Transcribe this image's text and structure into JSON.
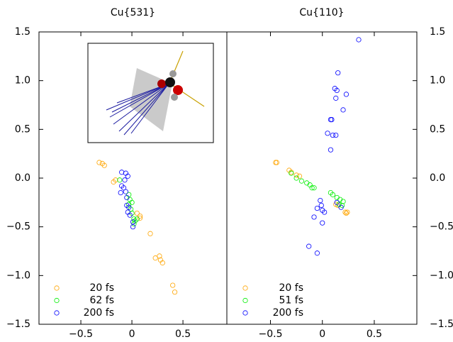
{
  "chart_data": [
    {
      "type": "scatter",
      "title": "Cu{531}",
      "legend": "lower left",
      "xlim": [
        -0.91,
        0.93
      ],
      "ylim": [
        -1.5,
        1.5
      ],
      "xticks": [
        {
          "value": -0.5,
          "label": "−0.5"
        },
        0,
        0.5
      ],
      "yticks": [
        {
          "value": -1.5,
          "label": "−1.5"
        },
        {
          "value": -1.0,
          "label": "−1.0"
        },
        {
          "value": -0.5,
          "label": "−0.5"
        },
        {
          "value": 0.0,
          "label": "0.0"
        },
        0.5,
        {
          "value": 1.0,
          "label": "1.0"
        },
        1.5
      ],
      "series": [
        {
          "name": "20 fs",
          "color": "#ffa500",
          "x": [
            -0.32,
            -0.29,
            -0.27,
            -0.18,
            -0.16,
            0.05,
            0.08,
            0.08,
            0.18,
            0.23,
            0.27,
            0.28,
            0.3,
            0.4,
            0.42
          ],
          "values": [
            0.16,
            0.15,
            0.13,
            -0.04,
            -0.02,
            -0.36,
            -0.39,
            -0.41,
            -0.57,
            -0.82,
            -0.8,
            -0.84,
            -0.87,
            -1.1,
            -1.17
          ]
        },
        {
          "name": "62 fs",
          "color": "#00ee00",
          "x": [
            -0.12,
            -0.03,
            -0.02,
            -0.03,
            0,
            -0.01,
            0,
            0.02,
            0.03,
            0.02,
            0.05
          ],
          "values": [
            -0.02,
            -0.17,
            -0.22,
            -0.27,
            -0.25,
            -0.32,
            -0.36,
            -0.42,
            -0.44,
            -0.47,
            -0.42
          ]
        },
        {
          "name": "200 fs",
          "color": "#0000ff",
          "x": [
            -0.1,
            -0.06,
            -0.04,
            -0.1,
            -0.08,
            -0.06,
            -0.11,
            -0.05,
            -0.05,
            -0.04,
            -0.02,
            0.01,
            0.01,
            -0.03,
            -0.07
          ],
          "values": [
            0.06,
            0.05,
            0.02,
            -0.08,
            -0.1,
            -0.14,
            -0.15,
            -0.2,
            -0.28,
            -0.35,
            -0.38,
            -0.45,
            -0.5,
            -0.3,
            -0.02
          ]
        }
      ]
    },
    {
      "type": "scatter",
      "title": "Cu{110}",
      "legend": "lower left",
      "xlim": [
        -0.92,
        0.91
      ],
      "ylim": [
        -1.5,
        1.5
      ],
      "xticks": [
        {
          "value": -0.5,
          "label": "−0.5"
        },
        0,
        0.5
      ],
      "yticks": [
        {
          "value": -1.5,
          "label": "−1.5"
        },
        {
          "value": -1.0,
          "label": "−1.0"
        },
        {
          "value": -0.5,
          "label": "−0.5"
        },
        {
          "value": 0.0,
          "label": "0.0"
        },
        0.5,
        {
          "value": 1.0,
          "label": "1.0"
        },
        1.5
      ],
      "series": [
        {
          "name": "20 fs",
          "color": "#ffa500",
          "x": [
            -0.45,
            -0.44,
            -0.32,
            -0.3,
            -0.25,
            -0.22,
            0.13,
            0.15,
            0.22,
            0.23,
            0.24
          ],
          "values": [
            0.16,
            0.16,
            0.08,
            0.06,
            0.03,
            0.02,
            -0.27,
            -0.28,
            -0.35,
            -0.36,
            -0.35
          ]
        },
        {
          "name": "51 fs",
          "color": "#00ee00",
          "x": [
            -0.3,
            -0.25,
            -0.2,
            -0.15,
            -0.12,
            -0.1,
            -0.08,
            0.08,
            0.1,
            0.14,
            0.17,
            0.2,
            0.16,
            0.19
          ],
          "values": [
            0.05,
            0.0,
            -0.03,
            -0.05,
            -0.07,
            -0.1,
            -0.1,
            -0.15,
            -0.17,
            -0.2,
            -0.22,
            -0.24,
            -0.27,
            -0.28
          ]
        },
        {
          "name": "200 fs",
          "color": "#0000ff",
          "x": [
            0.35,
            0.15,
            0.12,
            0.14,
            0.23,
            0.13,
            0.09,
            0.08,
            0.2,
            0.05,
            0.1,
            0.13,
            0.08,
            -0.02,
            -0.01,
            -0.05,
            0,
            0.02,
            -0.08,
            0,
            -0.13,
            -0.05,
            0.14,
            0.18
          ],
          "values": [
            1.42,
            1.08,
            0.92,
            0.9,
            0.86,
            0.82,
            0.6,
            0.6,
            0.7,
            0.46,
            0.44,
            0.44,
            0.29,
            -0.23,
            -0.28,
            -0.31,
            -0.33,
            -0.35,
            -0.4,
            -0.46,
            -0.7,
            -0.77,
            -0.25,
            -0.3
          ]
        }
      ]
    }
  ]
}
